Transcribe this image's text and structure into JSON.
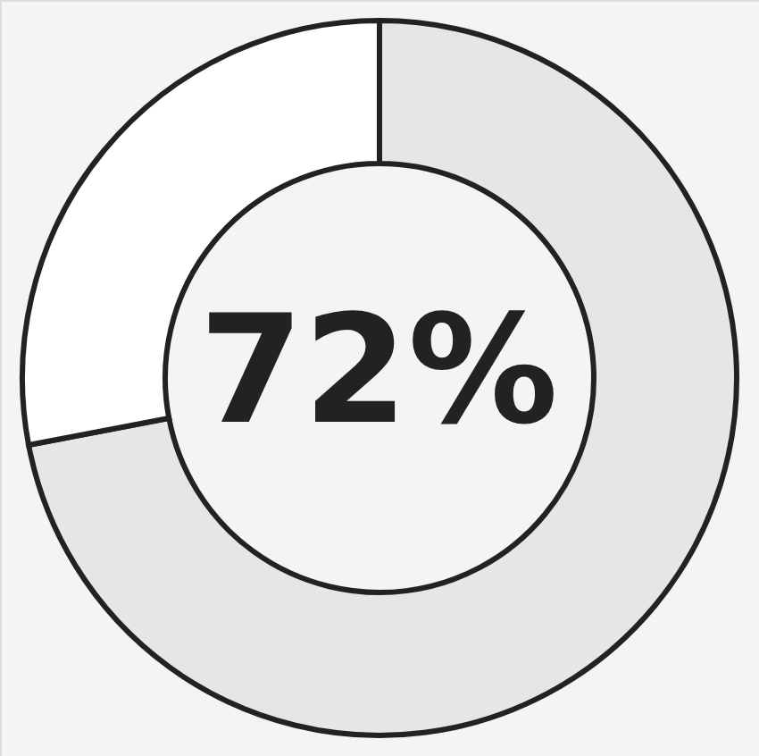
{
  "chart_data": {
    "type": "donut",
    "categories": [
      null,
      null
    ],
    "values": [
      72,
      28
    ],
    "colors": [
      "#e6e6e6",
      "#ffffff"
    ],
    "annotations": [
      "72%"
    ]
  }
}
